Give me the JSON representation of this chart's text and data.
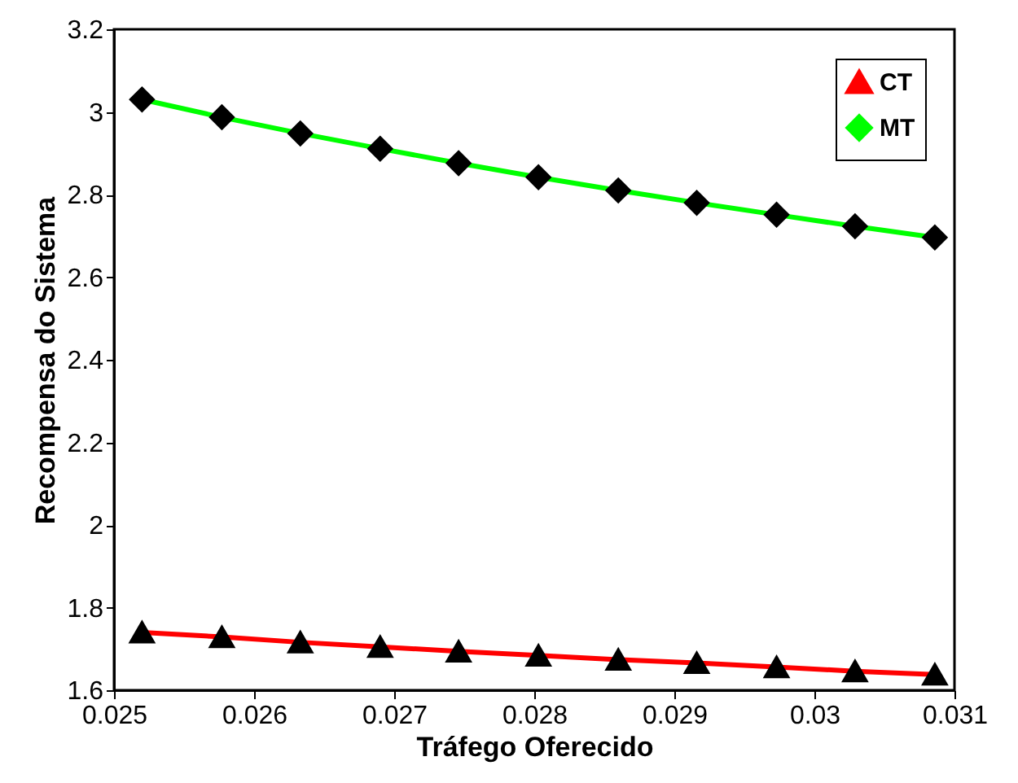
{
  "chart_data": {
    "type": "line",
    "xlabel": "Tráfego Oferecido",
    "ylabel": "Recompensa do Sistema",
    "x": [
      0.0252,
      0.02577,
      0.02633,
      0.0269,
      0.02746,
      0.02803,
      0.0286,
      0.02916,
      0.02973,
      0.03029,
      0.03086
    ],
    "series": [
      {
        "name": "CT",
        "color": "#ff0000",
        "marker": "triangle",
        "values": [
          1.74,
          1.729,
          1.716,
          1.705,
          1.694,
          1.684,
          1.674,
          1.666,
          1.656,
          1.646,
          1.638
        ]
      },
      {
        "name": "MT",
        "color": "#00ff00",
        "marker": "diamond",
        "values": [
          3.03,
          2.987,
          2.948,
          2.911,
          2.876,
          2.842,
          2.81,
          2.78,
          2.751,
          2.723,
          2.696
        ]
      }
    ],
    "xlim": [
      0.025,
      0.031
    ],
    "xticks": [
      0.025,
      0.026,
      0.027,
      0.028,
      0.029,
      0.03,
      0.031
    ],
    "ylim": [
      1.6,
      3.2
    ],
    "yticks": [
      1.6,
      1.8,
      2,
      2.2,
      2.4,
      2.6,
      2.8,
      3,
      3.2
    ],
    "grid": false,
    "legend": "top right",
    "line_style": "solid"
  }
}
